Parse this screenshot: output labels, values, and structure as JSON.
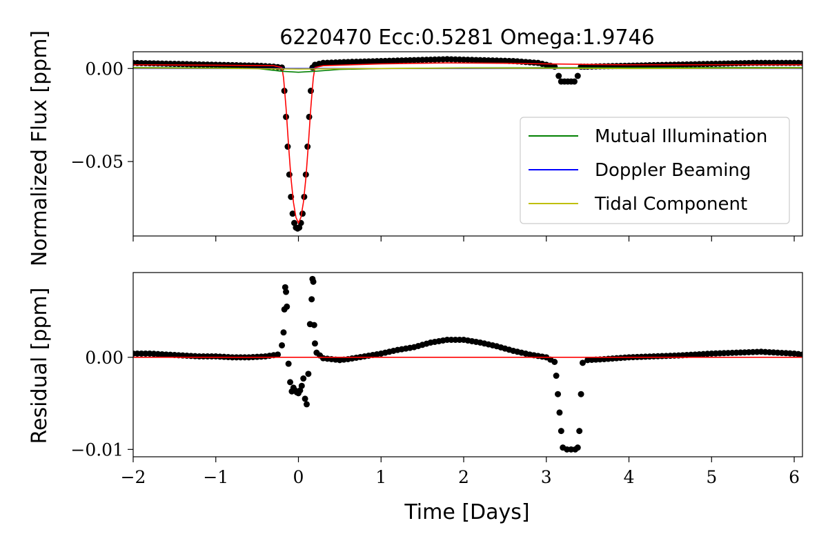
{
  "chart_data": [
    {
      "type": "line",
      "title": "6220470 Ecc:0.5281 Omega:1.9746",
      "xlabel": "",
      "ylabel": "Normalized Flux [ppm]",
      "xlim": [
        -2,
        6.1
      ],
      "ylim": [
        -0.09,
        0.009
      ],
      "xticks": [
        -2,
        -1,
        0,
        1,
        2,
        3,
        4,
        5,
        6
      ],
      "xtick_labels": [
        "",
        "",
        "",
        "",
        "",
        "",
        "",
        "",
        ""
      ],
      "yticks": [
        0.0,
        -0.05
      ],
      "ytick_labels": [
        "0.00",
        "−0.05"
      ],
      "legend": {
        "position": "right",
        "entries": [
          {
            "label": "Mutual Illumination",
            "color": "#008000"
          },
          {
            "label": "Doppler Beaming",
            "color": "#0000ff"
          },
          {
            "label": "Tidal Component",
            "color": "#bfbf00"
          }
        ]
      },
      "series": [
        {
          "name": "",
          "kind": "scatter",
          "color": "#000000",
          "x": [
            -2.0,
            -1.5,
            -1.0,
            -0.5,
            -0.3,
            -0.2,
            -0.17,
            -0.15,
            -0.13,
            -0.11,
            -0.09,
            -0.07,
            -0.05,
            -0.03,
            -0.01,
            0.01,
            0.03,
            0.05,
            0.07,
            0.09,
            0.11,
            0.13,
            0.15,
            0.17,
            0.2,
            0.3,
            0.6,
            1.0,
            1.4,
            1.8,
            2.2,
            2.6,
            2.9,
            3.1,
            3.15,
            3.18,
            3.22,
            3.26,
            3.3,
            3.34,
            3.38,
            3.42,
            3.5,
            4.0,
            4.5,
            5.0,
            5.5,
            6.1
          ],
          "y": [
            0.003,
            0.0025,
            0.002,
            0.0015,
            0.001,
            0.0005,
            -0.012,
            -0.026,
            -0.042,
            -0.057,
            -0.069,
            -0.078,
            -0.083,
            -0.0855,
            -0.086,
            -0.0855,
            -0.083,
            -0.078,
            -0.069,
            -0.057,
            -0.042,
            -0.026,
            -0.012,
            0.0005,
            0.002,
            0.003,
            0.0035,
            0.004,
            0.0045,
            0.005,
            0.0045,
            0.004,
            0.003,
            0.001,
            -0.004,
            -0.007,
            -0.007,
            -0.007,
            -0.007,
            -0.007,
            -0.004,
            0.001,
            0.001,
            0.0015,
            0.002,
            0.0025,
            0.003,
            0.003
          ]
        },
        {
          "name": "",
          "kind": "line",
          "color": "#ff0000",
          "x": [
            -2.0,
            -1.0,
            -0.3,
            -0.2,
            -0.18,
            -0.15,
            -0.12,
            -0.09,
            -0.06,
            -0.03,
            0.0,
            0.03,
            0.06,
            0.09,
            0.12,
            0.15,
            0.18,
            0.2,
            0.3,
            1.0,
            1.8,
            2.5,
            3.0,
            3.5,
            4.0,
            5.0,
            6.1
          ],
          "y": [
            0.002,
            0.0018,
            0.0015,
            0.0005,
            -0.005,
            -0.021,
            -0.041,
            -0.059,
            -0.072,
            -0.08,
            -0.083,
            -0.08,
            -0.072,
            -0.059,
            -0.041,
            -0.021,
            -0.005,
            0.0005,
            0.0015,
            0.0025,
            0.003,
            0.0028,
            0.0025,
            0.0022,
            0.002,
            0.002,
            0.002
          ]
        },
        {
          "name": "Mutual Illumination",
          "kind": "line",
          "color": "#008000",
          "x": [
            -2.0,
            -1.0,
            -0.5,
            -0.2,
            0.0,
            0.2,
            0.5,
            1.0,
            2.0,
            3.0,
            4.0,
            5.0,
            6.1
          ],
          "y": [
            0.0005,
            0.0003,
            0.0,
            -0.0015,
            -0.002,
            -0.0015,
            -0.0005,
            0.0,
            0.0003,
            0.0004,
            0.0004,
            0.0005,
            0.0005
          ]
        },
        {
          "name": "Doppler Beaming",
          "kind": "line",
          "color": "#0000ff",
          "x": [
            -2.0,
            6.1
          ],
          "y": [
            0.0,
            0.0
          ]
        },
        {
          "name": "Tidal Component",
          "kind": "line",
          "color": "#bfbf00",
          "x": [
            -2.0,
            -1.0,
            0.0,
            1.0,
            2.0,
            3.0,
            4.0,
            5.0,
            6.1
          ],
          "y": [
            0.0002,
            0.0001,
            -0.0003,
            0.0,
            0.0002,
            0.0001,
            0.0,
            0.0001,
            0.0002
          ]
        }
      ]
    },
    {
      "type": "scatter",
      "title": "",
      "xlabel": "Time [Days]",
      "ylabel": "Residual [ppm]",
      "xlim": [
        -2,
        6.1
      ],
      "ylim": [
        -0.0108,
        0.0092
      ],
      "xticks": [
        -2,
        -1,
        0,
        1,
        2,
        3,
        4,
        5,
        6
      ],
      "xtick_labels": [
        "−2",
        "−1",
        "0",
        "1",
        "2",
        "3",
        "4",
        "5",
        "6"
      ],
      "yticks": [
        0.0,
        -0.01
      ],
      "ytick_labels": [
        "0.00",
        "−0.01"
      ],
      "series": [
        {
          "name": "",
          "kind": "scatter",
          "color": "#000000",
          "x": [
            -2.0,
            -1.8,
            -1.6,
            -1.4,
            -1.2,
            -1.0,
            -0.8,
            -0.6,
            -0.4,
            -0.25,
            -0.2,
            -0.18,
            -0.17,
            -0.16,
            -0.15,
            -0.14,
            -0.12,
            -0.1,
            -0.08,
            -0.06,
            -0.04,
            -0.02,
            0.0,
            0.02,
            0.04,
            0.06,
            0.08,
            0.1,
            0.12,
            0.14,
            0.16,
            0.17,
            0.18,
            0.19,
            0.2,
            0.22,
            0.3,
            0.4,
            0.5,
            0.6,
            0.8,
            1.0,
            1.2,
            1.4,
            1.6,
            1.8,
            2.0,
            2.2,
            2.4,
            2.6,
            2.8,
            3.0,
            3.1,
            3.12,
            3.14,
            3.16,
            3.18,
            3.2,
            3.25,
            3.3,
            3.35,
            3.38,
            3.4,
            3.42,
            3.44,
            3.5,
            3.7,
            4.0,
            4.3,
            4.6,
            5.0,
            5.3,
            5.6,
            6.0,
            6.1
          ],
          "y": [
            0.0004,
            0.0004,
            0.0003,
            0.0002,
            0.0001,
            0.0001,
            0.0,
            0.0,
            0.0001,
            0.0003,
            0.0013,
            0.0027,
            0.0052,
            0.0076,
            0.0071,
            0.0055,
            -0.0007,
            -0.0027,
            -0.0037,
            -0.0033,
            -0.0036,
            -0.0038,
            -0.0039,
            -0.0036,
            -0.0031,
            -0.0023,
            -0.0045,
            -0.0051,
            -0.0018,
            0.0036,
            0.0063,
            0.0085,
            0.0082,
            0.0035,
            0.0015,
            0.0005,
            -0.0001,
            -0.0002,
            -0.0003,
            -0.0002,
            0.0001,
            0.0004,
            0.0008,
            0.0011,
            0.0016,
            0.0019,
            0.0019,
            0.0016,
            0.0012,
            0.0007,
            0.0003,
            0.0,
            -0.0005,
            -0.002,
            -0.004,
            -0.006,
            -0.008,
            -0.0098,
            -0.01,
            -0.01,
            -0.01,
            -0.0098,
            -0.008,
            -0.004,
            -0.0006,
            -0.0003,
            -0.0002,
            0.0,
            0.0001,
            0.0002,
            0.0004,
            0.0005,
            0.0006,
            0.0004,
            0.0003
          ]
        },
        {
          "name": "",
          "kind": "line",
          "color": "#ff0000",
          "x": [
            -2.0,
            6.1
          ],
          "y": [
            0.0,
            0.0
          ]
        }
      ]
    }
  ]
}
